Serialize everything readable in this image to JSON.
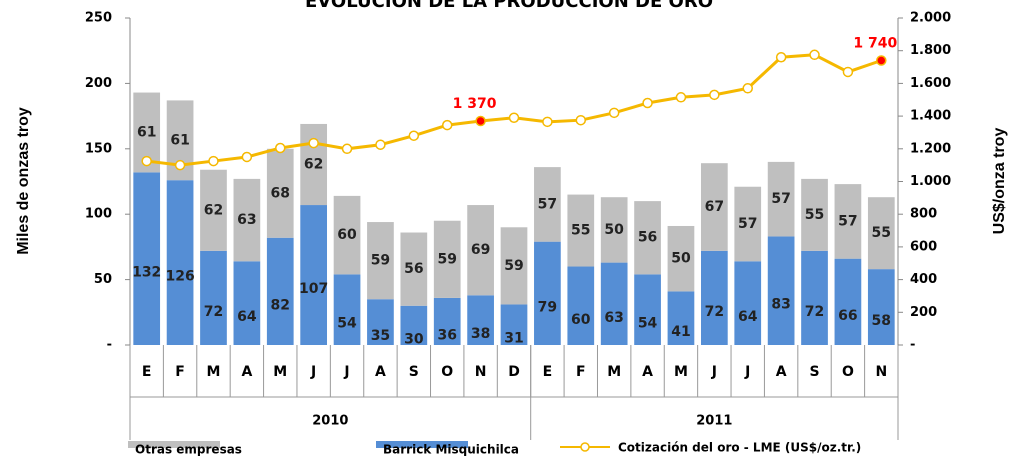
{
  "chart_data": {
    "type": "bar",
    "stacked": true,
    "title": "EVOLUCIÓN DE LA PRODUCCIÓN DE ORO",
    "ylabel": "Miles de onzas troy",
    "y2label": "US$/onza troy",
    "categories": [
      "E",
      "F",
      "M",
      "A",
      "M",
      "J",
      "J",
      "A",
      "S",
      "O",
      "N",
      "D",
      "E",
      "F",
      "M",
      "A",
      "M",
      "J",
      "J",
      "A",
      "S",
      "O",
      "N"
    ],
    "groups": [
      {
        "label": "2010",
        "span": 12
      },
      {
        "label": "2011",
        "span": 11
      }
    ],
    "series": [
      {
        "name": "Otras empresas",
        "color": "#bfbfbf",
        "values": [
          61,
          61,
          62,
          63,
          68,
          62,
          60,
          59,
          56,
          59,
          69,
          59,
          57,
          55,
          50,
          56,
          50,
          67,
          57,
          57,
          55,
          57,
          55
        ]
      },
      {
        "name": "Barrick Misquichilca",
        "color": "#558ed5",
        "values": [
          132,
          126,
          72,
          64,
          82,
          107,
          54,
          35,
          30,
          36,
          38,
          31,
          79,
          60,
          63,
          54,
          41,
          72,
          64,
          83,
          72,
          66,
          58
        ]
      },
      {
        "name": "Cotización del oro - LME (US$/oz.tr.)",
        "color": "#f5b800",
        "type": "line",
        "axis": "y2",
        "values": [
          1125,
          1100,
          1125,
          1150,
          1205,
          1235,
          1200,
          1225,
          1280,
          1345,
          1370,
          1390,
          1365,
          1375,
          1420,
          1480,
          1515,
          1530,
          1570,
          1760,
          1775,
          1670,
          1740
        ],
        "value_labels": [
          null,
          null,
          null,
          null,
          null,
          null,
          null,
          null,
          null,
          null,
          "1 370",
          null,
          null,
          null,
          null,
          null,
          null,
          null,
          null,
          null,
          null,
          null,
          "1 740"
        ],
        "label_color": "#ff0000"
      }
    ],
    "ylim": [
      0,
      250
    ],
    "yticks": [
      {
        "value": 0,
        "label": "-"
      },
      50,
      100,
      150,
      200,
      250
    ],
    "y2lim": [
      0,
      2000
    ],
    "y2ticks": [
      {
        "value": 0,
        "label": "-"
      },
      200,
      400,
      600,
      800,
      {
        "value": 1000,
        "label": "1.000"
      },
      {
        "value": 1200,
        "label": "1.200"
      },
      {
        "value": 1400,
        "label": "1.400"
      },
      {
        "value": 1600,
        "label": "1.600"
      },
      {
        "value": 1800,
        "label": "1.800"
      },
      {
        "value": 2000,
        "label": "2.000"
      }
    ],
    "legend": "bottom"
  }
}
